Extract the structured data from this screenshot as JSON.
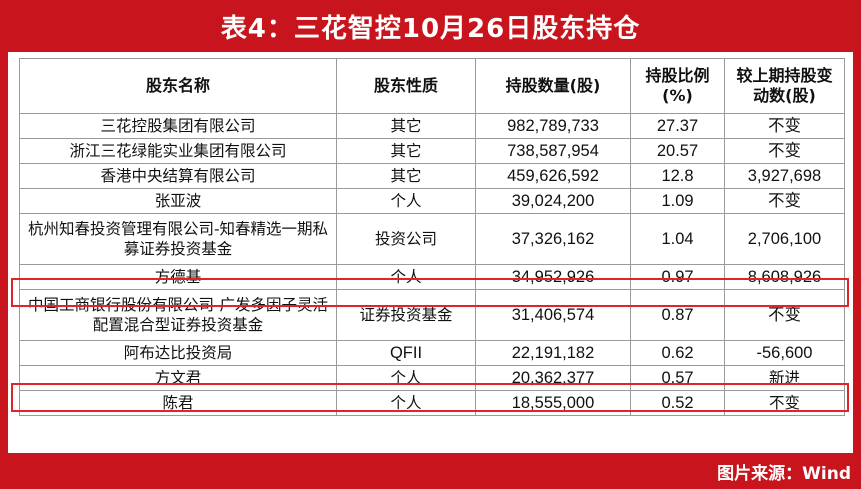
{
  "title": "表4：三花智控10月26日股东持仓",
  "source": "图片来源：Wind",
  "accent_color": "#c8141c",
  "highlight_color": "#e0242c",
  "table": {
    "headers": [
      "股东名称",
      "股东性质",
      "持股数量(股)",
      "持股比例\n(%)",
      "较上期持股变\n动数(股)"
    ],
    "rows": [
      [
        "三花控股集团有限公司",
        "其它",
        "982,789,733",
        "27.37",
        "不变"
      ],
      [
        "浙江三花绿能实业集团有限公司",
        "其它",
        "738,587,954",
        "20.57",
        "不变"
      ],
      [
        "香港中央结算有限公司",
        "其它",
        "459,626,592",
        "12.8",
        "3,927,698"
      ],
      [
        "张亚波",
        "个人",
        "39,024,200",
        "1.09",
        "不变"
      ],
      [
        "杭州知春投资管理有限公司-知春精选一期私募证券投资基金",
        "投资公司",
        "37,326,162",
        "1.04",
        "2,706,100"
      ],
      [
        "方德基",
        "个人",
        "34,952,926",
        "0.97",
        "8,608,926"
      ],
      [
        "中国工商银行股份有限公司-广发多因子灵活配置混合型证券投资基金",
        "证券投资基金",
        "31,406,574",
        "0.87",
        "不变"
      ],
      [
        "阿布达比投资局",
        "QFII",
        "22,191,182",
        "0.62",
        "-56,600"
      ],
      [
        "方文君",
        "个人",
        "20,362,377",
        "0.57",
        "新进"
      ],
      [
        "陈君",
        "个人",
        "18,555,000",
        "0.52",
        "不变"
      ]
    ],
    "highlighted_rows": [
      "方德基",
      "方文君"
    ]
  }
}
